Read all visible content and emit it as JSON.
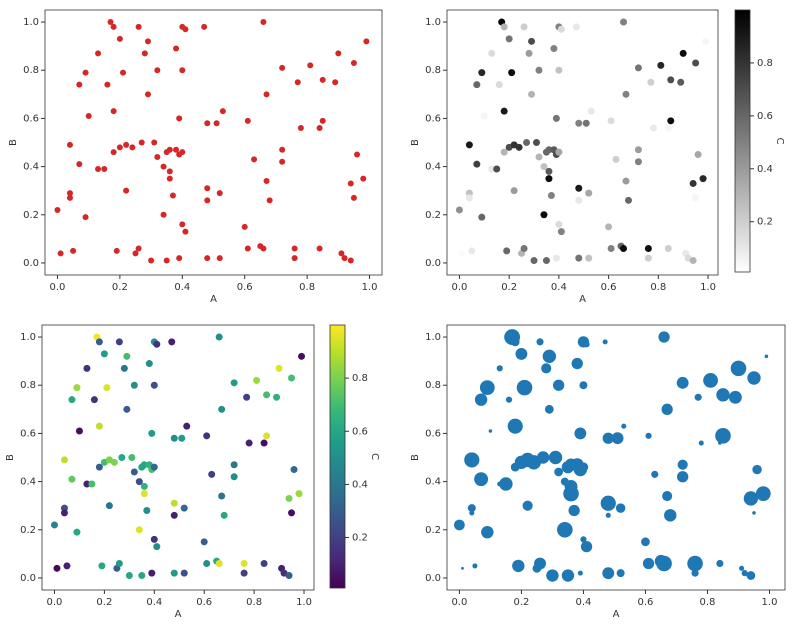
{
  "chart_data": [
    {
      "type": "scatter",
      "x_label": "A",
      "y_label": "B",
      "color": "#d62728",
      "xlim": [
        -0.04,
        1.04
      ],
      "ylim": [
        -0.05,
        1.05
      ],
      "xticks": [
        {
          "value": 0,
          "label": "0.0"
        },
        0.2,
        0.4,
        0.6,
        0.8,
        {
          "value": 1,
          "label": "1.0"
        }
      ],
      "yticks": [
        {
          "value": 0,
          "label": "0.0"
        },
        0.2,
        0.4,
        0.6,
        0.8,
        {
          "value": 1,
          "label": "1.0"
        }
      ],
      "x": [
        0.17,
        0.18,
        0.26,
        0.4,
        0.41,
        0.47,
        0.66,
        0.2,
        0.29,
        0.38,
        0.99,
        0.13,
        0.28,
        0.9,
        0.09,
        0.21,
        0.32,
        0.4,
        0.07,
        0.16,
        0.72,
        0.77,
        0.81,
        0.85,
        0.89,
        0.95,
        0.29,
        0.67,
        0.1,
        0.18,
        0.39,
        0.48,
        0.51,
        0.53,
        0.61,
        0.78,
        0.85,
        0.84,
        0.04,
        0.18,
        0.2,
        0.22,
        0.24,
        0.27,
        0.31,
        0.35,
        0.36,
        0.38,
        0.39,
        0.4,
        0.32,
        0.34,
        0.07,
        0.13,
        0.15,
        0.36,
        0.63,
        0.72,
        0.72,
        0.96,
        0.04,
        0.04,
        0.09,
        0.0,
        0.22,
        0.36,
        0.37,
        0.48,
        0.48,
        0.52,
        0.67,
        0.68,
        0.94,
        0.98,
        0.95,
        0.34,
        0.4,
        0.41,
        0.01,
        0.05,
        0.19,
        0.25,
        0.26,
        0.3,
        0.35,
        0.39,
        0.48,
        0.52,
        0.61,
        0.65,
        0.66,
        0.76,
        0.76,
        0.84,
        0.91,
        0.92,
        0.94,
        0.6
      ],
      "y": [
        1.0,
        0.98,
        0.98,
        0.98,
        0.97,
        0.98,
        1.0,
        0.93,
        0.92,
        0.89,
        0.92,
        0.87,
        0.87,
        0.87,
        0.79,
        0.79,
        0.8,
        0.8,
        0.74,
        0.74,
        0.81,
        0.75,
        0.82,
        0.76,
        0.75,
        0.83,
        0.7,
        0.7,
        0.61,
        0.63,
        0.6,
        0.58,
        0.58,
        0.63,
        0.59,
        0.56,
        0.59,
        0.56,
        0.49,
        0.46,
        0.48,
        0.49,
        0.48,
        0.5,
        0.5,
        0.46,
        0.47,
        0.47,
        0.45,
        0.46,
        0.44,
        0.4,
        0.41,
        0.39,
        0.39,
        0.38,
        0.43,
        0.47,
        0.42,
        0.45,
        0.29,
        0.27,
        0.19,
        0.22,
        0.3,
        0.35,
        0.28,
        0.31,
        0.26,
        0.29,
        0.34,
        0.26,
        0.33,
        0.35,
        0.27,
        0.2,
        0.16,
        0.13,
        0.04,
        0.05,
        0.05,
        0.04,
        0.06,
        0.01,
        0.01,
        0.02,
        0.02,
        0.02,
        0.06,
        0.07,
        0.06,
        0.06,
        0.02,
        0.06,
        0.04,
        0.02,
        0.01,
        0.15
      ]
    },
    {
      "type": "scatter",
      "x_label": "A",
      "y_label": "B",
      "colormap": "Greys",
      "xlim": [
        -0.05,
        1.04
      ],
      "ylim": [
        -0.05,
        1.05
      ],
      "xticks": [
        {
          "value": 0,
          "label": "0.0"
        },
        0.2,
        0.4,
        0.6,
        0.8,
        {
          "value": 1,
          "label": "1.0"
        }
      ],
      "yticks": [
        {
          "value": 0,
          "label": "0.0"
        },
        0.2,
        0.4,
        0.6,
        0.8,
        {
          "value": 1,
          "label": "1.0"
        }
      ],
      "colorbar": {
        "label": "C",
        "lim": [
          0.01,
          1.0
        ],
        "ticks": [
          0.2,
          0.4,
          0.6,
          0.8
        ]
      },
      "x": [
        0.17,
        0.18,
        0.26,
        0.4,
        0.41,
        0.47,
        0.66,
        0.2,
        0.29,
        0.38,
        0.99,
        0.13,
        0.28,
        0.9,
        0.09,
        0.21,
        0.32,
        0.4,
        0.07,
        0.16,
        0.72,
        0.77,
        0.81,
        0.85,
        0.89,
        0.95,
        0.29,
        0.67,
        0.1,
        0.18,
        0.39,
        0.48,
        0.51,
        0.53,
        0.61,
        0.78,
        0.85,
        0.84,
        0.04,
        0.18,
        0.2,
        0.22,
        0.24,
        0.27,
        0.31,
        0.35,
        0.36,
        0.38,
        0.39,
        0.4,
        0.32,
        0.34,
        0.07,
        0.13,
        0.15,
        0.36,
        0.63,
        0.72,
        0.72,
        0.96,
        0.04,
        0.04,
        0.09,
        0.0,
        0.22,
        0.36,
        0.37,
        0.48,
        0.48,
        0.52,
        0.67,
        0.68,
        0.94,
        0.98,
        0.95,
        0.34,
        0.4,
        0.41,
        0.01,
        0.05,
        0.19,
        0.25,
        0.26,
        0.3,
        0.35,
        0.39,
        0.48,
        0.52,
        0.61,
        0.65,
        0.66,
        0.76,
        0.76,
        0.84,
        0.91,
        0.92,
        0.94,
        0.6
      ],
      "y": [
        1.0,
        0.98,
        0.98,
        0.98,
        0.97,
        0.98,
        1.0,
        0.93,
        0.92,
        0.89,
        0.92,
        0.87,
        0.87,
        0.87,
        0.79,
        0.79,
        0.8,
        0.8,
        0.74,
        0.74,
        0.81,
        0.75,
        0.82,
        0.76,
        0.75,
        0.83,
        0.7,
        0.7,
        0.61,
        0.63,
        0.6,
        0.58,
        0.58,
        0.63,
        0.59,
        0.56,
        0.59,
        0.56,
        0.49,
        0.46,
        0.48,
        0.49,
        0.48,
        0.5,
        0.5,
        0.46,
        0.47,
        0.47,
        0.45,
        0.46,
        0.44,
        0.4,
        0.41,
        0.39,
        0.39,
        0.38,
        0.43,
        0.47,
        0.42,
        0.45,
        0.29,
        0.27,
        0.19,
        0.22,
        0.3,
        0.35,
        0.28,
        0.31,
        0.26,
        0.29,
        0.34,
        0.26,
        0.33,
        0.35,
        0.27,
        0.2,
        0.16,
        0.13,
        0.04,
        0.05,
        0.05,
        0.04,
        0.06,
        0.01,
        0.01,
        0.02,
        0.02,
        0.02,
        0.06,
        0.07,
        0.06,
        0.06,
        0.02,
        0.06,
        0.04,
        0.02,
        0.01,
        0.15
      ],
      "c": [
        0.98,
        0.3,
        0.2,
        0.5,
        0.15,
        0.1,
        0.5,
        0.55,
        0.7,
        0.5,
        0.05,
        0.15,
        0.4,
        0.95,
        0.85,
        0.95,
        0.5,
        0.25,
        0.6,
        0.15,
        0.55,
        0.2,
        0.85,
        0.7,
        0.65,
        0.7,
        0.3,
        0.5,
        0.05,
        0.9,
        0.55,
        0.5,
        0.55,
        0.1,
        0.15,
        0.1,
        0.95,
        0.05,
        0.9,
        0.3,
        0.7,
        0.8,
        0.8,
        0.6,
        0.7,
        0.6,
        0.6,
        0.65,
        0.7,
        0.35,
        0.3,
        0.25,
        0.75,
        0.1,
        0.7,
        0.65,
        0.2,
        0.4,
        0.5,
        0.35,
        0.25,
        0.1,
        0.6,
        0.45,
        0.4,
        0.95,
        0.5,
        0.9,
        0.1,
        0.35,
        0.4,
        0.6,
        0.8,
        0.85,
        0.05,
        0.95,
        0.15,
        0.5,
        0.03,
        0.1,
        0.6,
        0.3,
        0.55,
        0.6,
        0.6,
        0.1,
        0.55,
        0.25,
        0.5,
        0.6,
        0.95,
        0.95,
        0.2,
        0.2,
        0.1,
        0.15,
        0.3,
        0.3
      ]
    },
    {
      "type": "scatter",
      "x_label": "A",
      "y_label": "B",
      "colormap": "viridis",
      "xlim": [
        -0.05,
        1.04
      ],
      "ylim": [
        -0.05,
        1.05
      ],
      "xticks": [
        {
          "value": 0,
          "label": "0.0"
        },
        0.2,
        0.4,
        0.6,
        0.8,
        {
          "value": 1,
          "label": "1.0"
        }
      ],
      "yticks": [
        {
          "value": 0,
          "label": "0.0"
        },
        0.2,
        0.4,
        0.6,
        0.8,
        {
          "value": 1,
          "label": "1.0"
        }
      ],
      "colorbar": {
        "label": "C",
        "lim": [
          0.01,
          1.0
        ],
        "ticks": [
          0.2,
          0.4,
          0.6,
          0.8
        ]
      },
      "x": [
        0.17,
        0.18,
        0.26,
        0.4,
        0.41,
        0.47,
        0.66,
        0.2,
        0.29,
        0.38,
        0.99,
        0.13,
        0.28,
        0.9,
        0.09,
        0.21,
        0.32,
        0.4,
        0.07,
        0.16,
        0.72,
        0.77,
        0.81,
        0.85,
        0.89,
        0.95,
        0.29,
        0.67,
        0.1,
        0.18,
        0.39,
        0.48,
        0.51,
        0.53,
        0.61,
        0.78,
        0.85,
        0.84,
        0.04,
        0.18,
        0.2,
        0.22,
        0.24,
        0.27,
        0.31,
        0.35,
        0.36,
        0.38,
        0.39,
        0.4,
        0.32,
        0.34,
        0.07,
        0.13,
        0.15,
        0.36,
        0.63,
        0.72,
        0.72,
        0.96,
        0.04,
        0.04,
        0.09,
        0.0,
        0.22,
        0.36,
        0.37,
        0.48,
        0.48,
        0.52,
        0.67,
        0.68,
        0.94,
        0.98,
        0.95,
        0.34,
        0.4,
        0.41,
        0.01,
        0.05,
        0.19,
        0.25,
        0.26,
        0.3,
        0.35,
        0.39,
        0.48,
        0.52,
        0.61,
        0.65,
        0.66,
        0.76,
        0.76,
        0.84,
        0.91,
        0.92,
        0.94,
        0.6
      ],
      "y": [
        1.0,
        0.98,
        0.98,
        0.98,
        0.97,
        0.98,
        1.0,
        0.93,
        0.92,
        0.89,
        0.92,
        0.87,
        0.87,
        0.87,
        0.79,
        0.79,
        0.8,
        0.8,
        0.74,
        0.74,
        0.81,
        0.75,
        0.82,
        0.76,
        0.75,
        0.83,
        0.7,
        0.7,
        0.61,
        0.63,
        0.6,
        0.58,
        0.58,
        0.63,
        0.59,
        0.56,
        0.59,
        0.56,
        0.49,
        0.46,
        0.48,
        0.49,
        0.48,
        0.5,
        0.5,
        0.46,
        0.47,
        0.47,
        0.45,
        0.46,
        0.44,
        0.4,
        0.41,
        0.39,
        0.39,
        0.38,
        0.43,
        0.47,
        0.42,
        0.45,
        0.29,
        0.27,
        0.19,
        0.22,
        0.3,
        0.35,
        0.28,
        0.31,
        0.26,
        0.29,
        0.34,
        0.26,
        0.33,
        0.35,
        0.27,
        0.2,
        0.16,
        0.13,
        0.04,
        0.05,
        0.05,
        0.04,
        0.06,
        0.01,
        0.01,
        0.02,
        0.02,
        0.02,
        0.06,
        0.07,
        0.06,
        0.06,
        0.02,
        0.06,
        0.04,
        0.02,
        0.01,
        0.15
      ],
      "c": [
        0.98,
        0.3,
        0.2,
        0.5,
        0.15,
        0.1,
        0.5,
        0.55,
        0.7,
        0.5,
        0.05,
        0.15,
        0.4,
        0.95,
        0.85,
        0.95,
        0.5,
        0.25,
        0.6,
        0.15,
        0.55,
        0.2,
        0.85,
        0.7,
        0.65,
        0.7,
        0.3,
        0.5,
        0.05,
        0.9,
        0.55,
        0.5,
        0.55,
        0.1,
        0.15,
        0.1,
        0.95,
        0.05,
        0.9,
        0.3,
        0.7,
        0.8,
        0.8,
        0.6,
        0.7,
        0.6,
        0.6,
        0.65,
        0.7,
        0.35,
        0.3,
        0.25,
        0.75,
        0.1,
        0.7,
        0.65,
        0.2,
        0.4,
        0.5,
        0.35,
        0.25,
        0.1,
        0.6,
        0.45,
        0.4,
        0.95,
        0.5,
        0.9,
        0.1,
        0.35,
        0.4,
        0.6,
        0.8,
        0.85,
        0.05,
        0.95,
        0.15,
        0.5,
        0.03,
        0.1,
        0.6,
        0.3,
        0.55,
        0.6,
        0.6,
        0.1,
        0.55,
        0.25,
        0.5,
        0.6,
        0.95,
        0.95,
        0.2,
        0.2,
        0.1,
        0.15,
        0.3,
        0.3
      ]
    },
    {
      "type": "bubble",
      "x_label": "A",
      "y_label": "B",
      "color": "#1f77b4",
      "xlim": [
        -0.04,
        1.05
      ],
      "ylim": [
        -0.05,
        1.05
      ],
      "xticks": [
        {
          "value": 0,
          "label": "0.0"
        },
        0.2,
        0.4,
        0.6,
        0.8,
        {
          "value": 1,
          "label": "1.0"
        }
      ],
      "yticks": [
        {
          "value": 0,
          "label": "0.0"
        },
        0.2,
        0.4,
        0.6,
        0.8,
        {
          "value": 1,
          "label": "1.0"
        }
      ],
      "x": [
        0.17,
        0.18,
        0.26,
        0.4,
        0.41,
        0.47,
        0.66,
        0.2,
        0.29,
        0.38,
        0.99,
        0.13,
        0.28,
        0.9,
        0.09,
        0.21,
        0.32,
        0.4,
        0.07,
        0.16,
        0.72,
        0.77,
        0.81,
        0.85,
        0.89,
        0.95,
        0.29,
        0.67,
        0.1,
        0.18,
        0.39,
        0.48,
        0.51,
        0.53,
        0.61,
        0.78,
        0.85,
        0.84,
        0.04,
        0.18,
        0.2,
        0.22,
        0.24,
        0.27,
        0.31,
        0.35,
        0.36,
        0.38,
        0.39,
        0.4,
        0.32,
        0.34,
        0.07,
        0.13,
        0.15,
        0.36,
        0.63,
        0.72,
        0.72,
        0.96,
        0.04,
        0.04,
        0.09,
        0.0,
        0.22,
        0.36,
        0.37,
        0.48,
        0.48,
        0.52,
        0.67,
        0.68,
        0.94,
        0.98,
        0.95,
        0.34,
        0.4,
        0.41,
        0.01,
        0.05,
        0.19,
        0.25,
        0.26,
        0.3,
        0.35,
        0.39,
        0.48,
        0.52,
        0.61,
        0.65,
        0.66,
        0.76,
        0.76,
        0.84,
        0.91,
        0.92,
        0.94,
        0.6
      ],
      "y": [
        1.0,
        0.98,
        0.98,
        0.98,
        0.97,
        0.98,
        1.0,
        0.93,
        0.92,
        0.89,
        0.92,
        0.87,
        0.87,
        0.87,
        0.79,
        0.79,
        0.8,
        0.8,
        0.74,
        0.74,
        0.81,
        0.75,
        0.82,
        0.76,
        0.75,
        0.83,
        0.7,
        0.7,
        0.61,
        0.63,
        0.6,
        0.58,
        0.58,
        0.63,
        0.59,
        0.56,
        0.59,
        0.56,
        0.49,
        0.46,
        0.48,
        0.49,
        0.48,
        0.5,
        0.5,
        0.46,
        0.47,
        0.47,
        0.45,
        0.46,
        0.44,
        0.4,
        0.41,
        0.39,
        0.39,
        0.38,
        0.43,
        0.47,
        0.42,
        0.45,
        0.29,
        0.27,
        0.19,
        0.22,
        0.3,
        0.35,
        0.28,
        0.31,
        0.26,
        0.29,
        0.34,
        0.26,
        0.33,
        0.35,
        0.27,
        0.2,
        0.16,
        0.13,
        0.04,
        0.05,
        0.05,
        0.04,
        0.06,
        0.01,
        0.01,
        0.02,
        0.02,
        0.02,
        0.06,
        0.07,
        0.06,
        0.06,
        0.02,
        0.06,
        0.04,
        0.02,
        0.01,
        0.15
      ],
      "c": [
        0.98,
        0.3,
        0.2,
        0.5,
        0.15,
        0.1,
        0.5,
        0.55,
        0.7,
        0.5,
        0.05,
        0.15,
        0.4,
        0.95,
        0.85,
        0.95,
        0.5,
        0.25,
        0.6,
        0.15,
        0.55,
        0.2,
        0.85,
        0.7,
        0.65,
        0.7,
        0.3,
        0.5,
        0.05,
        0.9,
        0.55,
        0.5,
        0.55,
        0.1,
        0.15,
        0.1,
        0.95,
        0.05,
        0.9,
        0.3,
        0.7,
        0.8,
        0.8,
        0.6,
        0.7,
        0.6,
        0.6,
        0.65,
        0.7,
        0.35,
        0.3,
        0.25,
        0.75,
        0.1,
        0.7,
        0.65,
        0.2,
        0.4,
        0.5,
        0.35,
        0.25,
        0.1,
        0.6,
        0.45,
        0.4,
        0.95,
        0.5,
        0.9,
        0.1,
        0.35,
        0.4,
        0.6,
        0.8,
        0.85,
        0.05,
        0.95,
        0.15,
        0.5,
        0.03,
        0.1,
        0.6,
        0.3,
        0.55,
        0.6,
        0.6,
        0.1,
        0.55,
        0.25,
        0.5,
        0.6,
        0.95,
        0.95,
        0.2,
        0.2,
        0.1,
        0.15,
        0.3,
        0.3
      ]
    }
  ]
}
